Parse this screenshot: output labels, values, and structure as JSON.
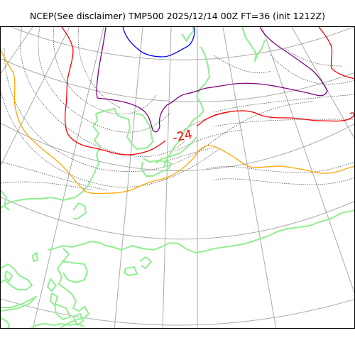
{
  "title": "NCEP(See disclaimer) TMP500 2025/12/14 00Z FT=36 (init 1212Z)",
  "map": {
    "variable": "TMP500",
    "colors": {
      "coast": "#90ee90",
      "grid": "#aaaaaa",
      "dotted_isotherm": "#555555",
      "blue_isotherm": "#0000ff",
      "purple_isotherm": "#800080",
      "red_isotherm": "#ff0000",
      "orange_isotherm": "#ffa500"
    },
    "labels": [
      {
        "text": "-24",
        "color": "#ff0000"
      }
    ]
  }
}
